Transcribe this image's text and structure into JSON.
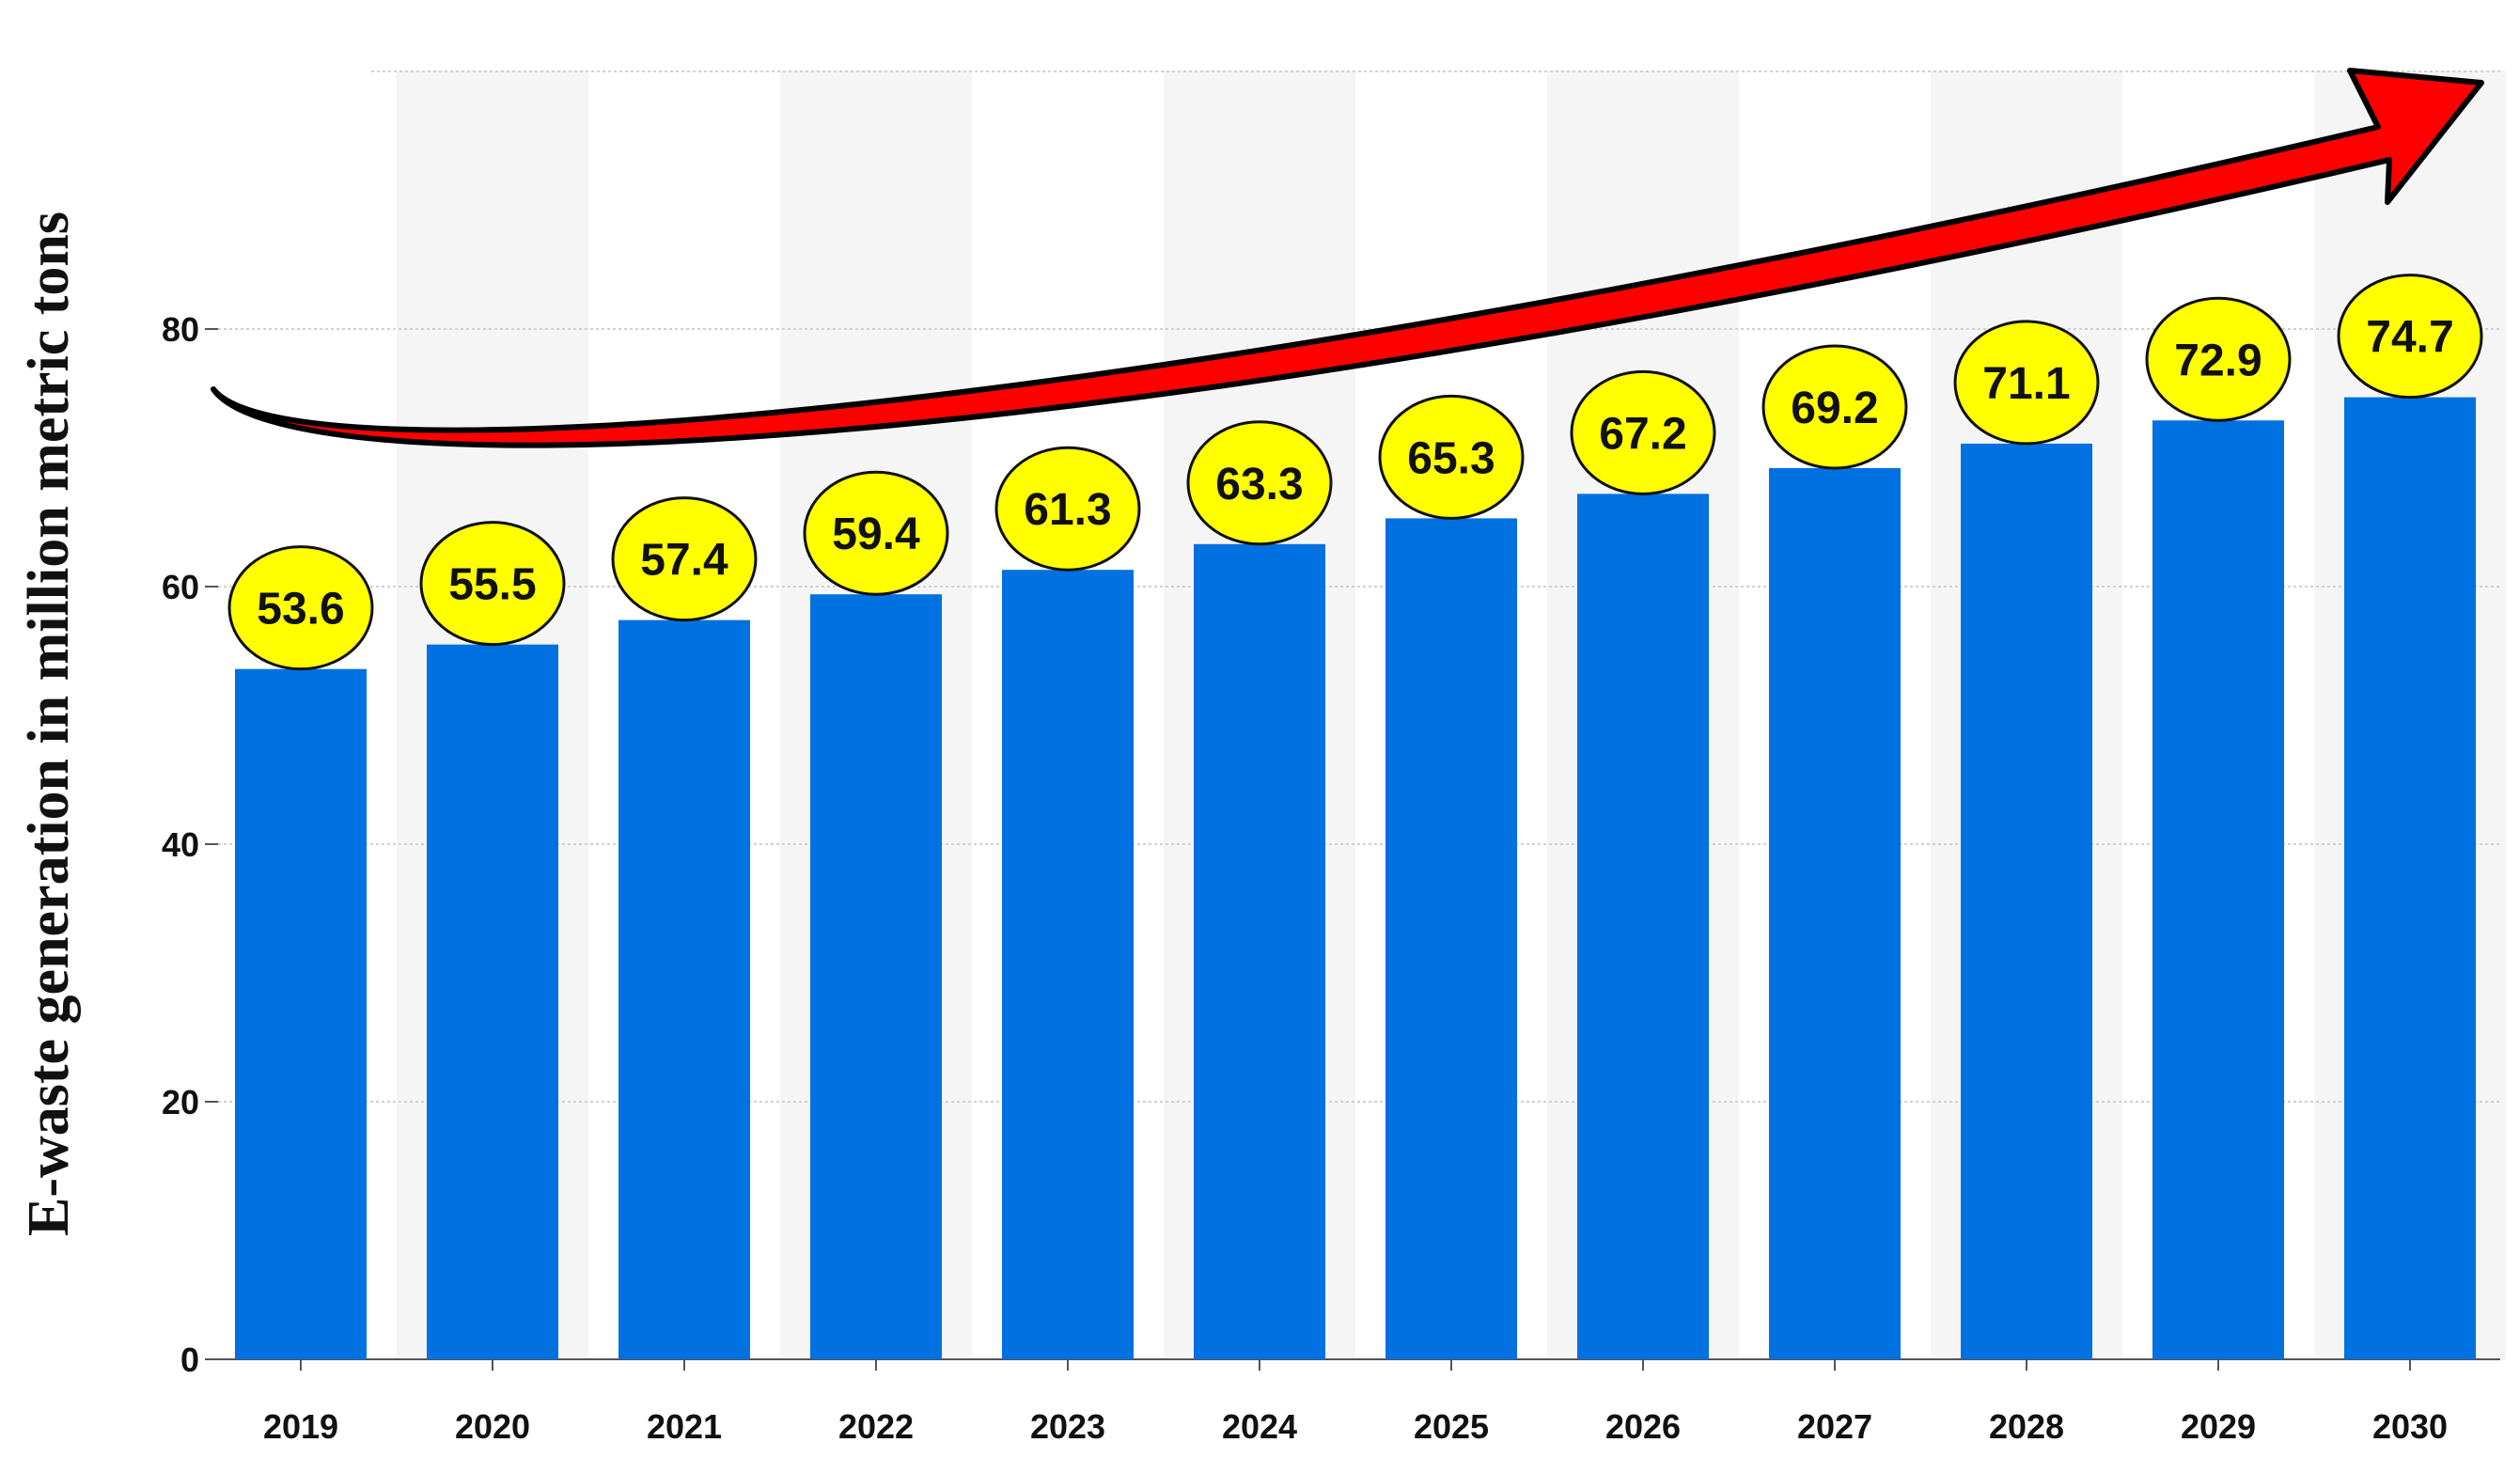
{
  "chart_data": {
    "type": "bar",
    "title": "",
    "xlabel": "",
    "ylabel": "E-waste generation in million metric tons",
    "categories": [
      "2019",
      "2020",
      "2021",
      "2022",
      "2023",
      "2024",
      "2025",
      "2026",
      "2027",
      "2028",
      "2029",
      "2030"
    ],
    "values": [
      53.6,
      55.5,
      57.4,
      59.4,
      61.3,
      63.3,
      65.3,
      67.2,
      69.2,
      71.1,
      72.9,
      74.7
    ],
    "value_labels": [
      "53.6",
      "55.5",
      "57.4",
      "59.4",
      "61.3",
      "63.3",
      "65.3",
      "67.2",
      "69.2",
      "71.1",
      "72.9",
      "74.7"
    ],
    "ylim": [
      0,
      100
    ],
    "yticks": [
      0,
      20,
      40,
      60,
      80
    ],
    "ytick_labels": [
      "0",
      "20",
      "40",
      "60",
      "80"
    ],
    "grid": true,
    "legend": "none",
    "annotations": [
      {
        "kind": "arrow",
        "description": "upward trend",
        "direction": "increasing"
      }
    ],
    "colors": {
      "bar": "#0071e0",
      "label_bubble": "#ffff00",
      "label_bubble_stroke": "#111111",
      "arrow": "#ff0000",
      "arrow_stroke": "#000000",
      "grid": "#d0d0d0",
      "band": "#f5f5f5"
    }
  }
}
